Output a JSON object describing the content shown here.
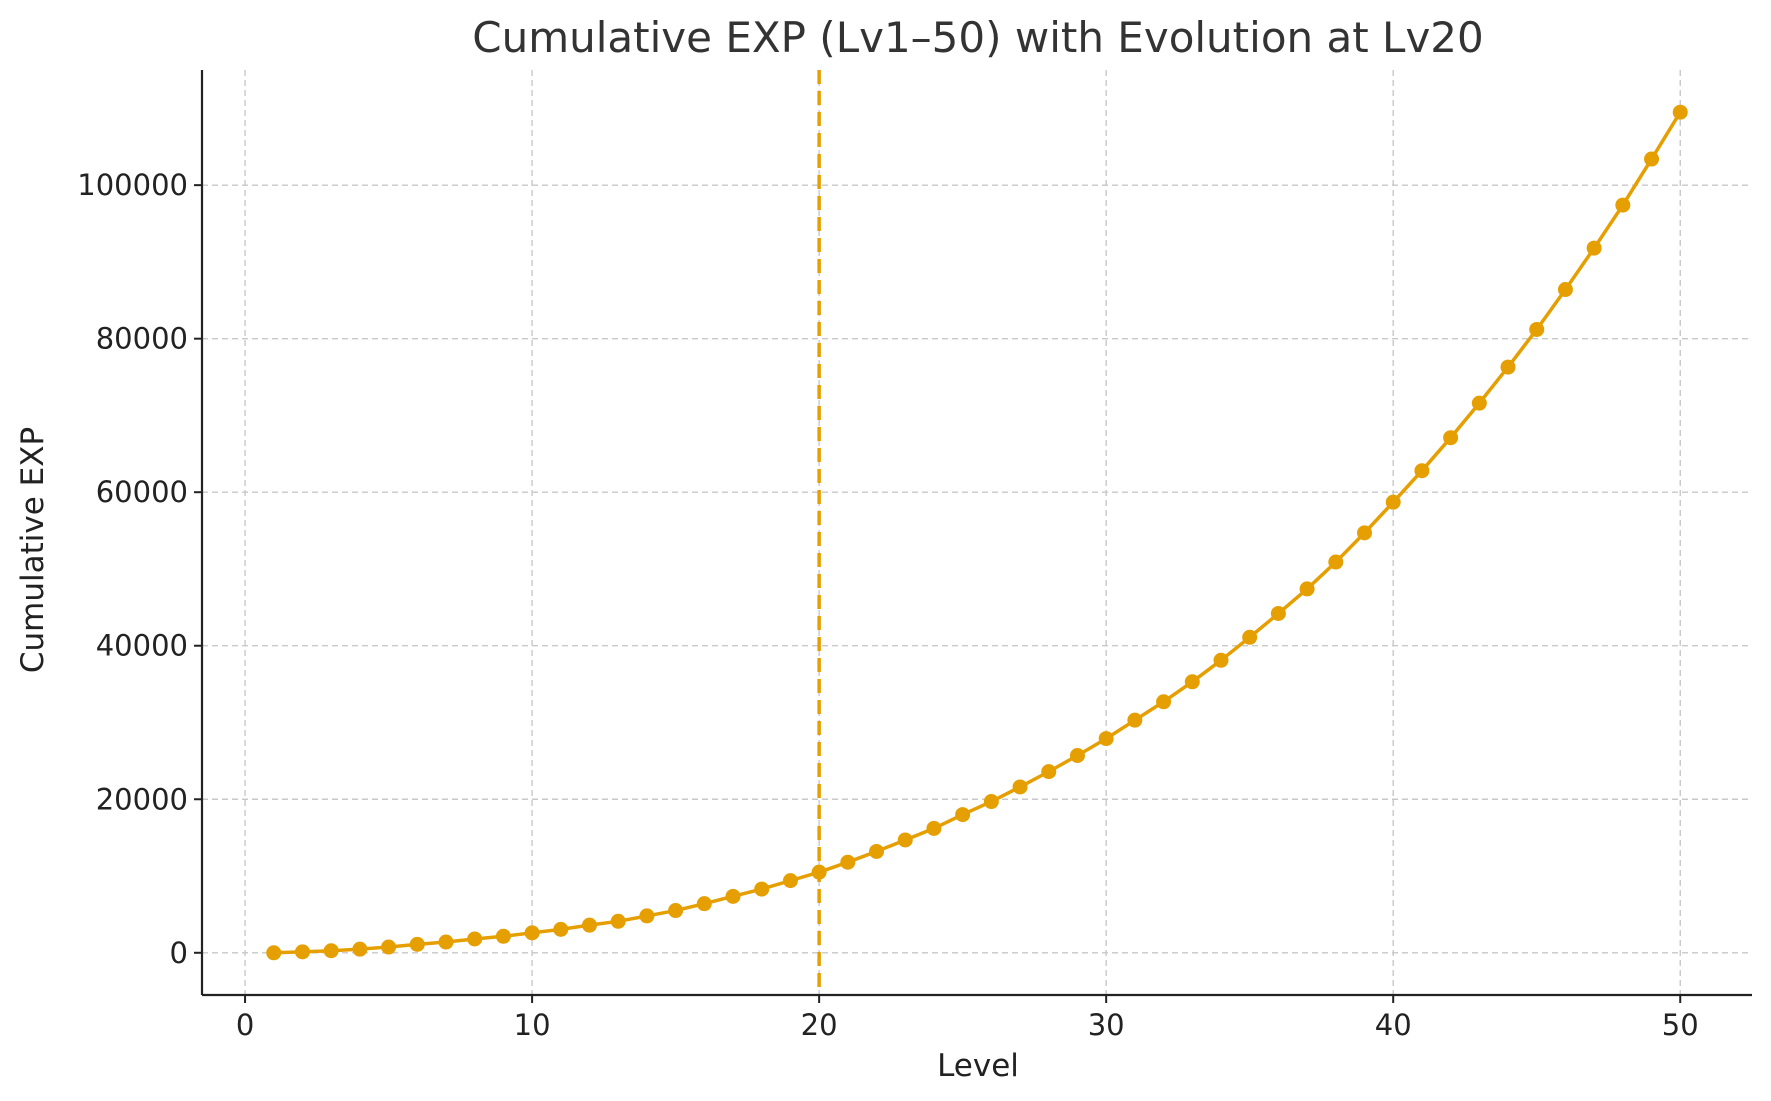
{
  "chart_data": {
    "type": "line",
    "title": "Cumulative EXP (Lv1–50) with Evolution at Lv20",
    "xlabel": "Level",
    "ylabel": "Cumulative EXP",
    "xlim": [
      -1.5,
      52.5
    ],
    "ylim": [
      -5500,
      115000
    ],
    "xticks": [
      0,
      10,
      20,
      30,
      40,
      50
    ],
    "yticks": [
      0,
      20000,
      40000,
      60000,
      80000,
      100000
    ],
    "grid": true,
    "legend": "none",
    "color": "#E69F00",
    "series": [
      {
        "marker": "circle",
        "x": [
          1,
          2,
          3,
          4,
          5,
          6,
          7,
          8,
          9,
          10,
          11,
          12,
          13,
          14,
          15,
          16,
          17,
          18,
          19,
          20,
          21,
          22,
          23,
          24,
          25,
          26,
          27,
          28,
          29,
          30,
          31,
          32,
          33,
          34,
          35,
          36,
          37,
          38,
          39,
          40,
          41,
          42,
          43,
          44,
          45,
          46,
          47,
          48,
          49,
          50
        ],
        "y": [
          0,
          120,
          270,
          470,
          750,
          1100,
          1400,
          1800,
          2150,
          2600,
          3050,
          3600,
          4100,
          4800,
          5500,
          6400,
          7350,
          8300,
          9400,
          10500,
          11800,
          13200,
          14700,
          16200,
          18000,
          19700,
          21600,
          23600,
          25700,
          27900,
          30300,
          32700,
          35300,
          38100,
          41100,
          44200,
          47400,
          50900,
          54700,
          58700,
          62800,
          67100,
          71600,
          76300,
          81200,
          86400,
          91800,
          97400,
          103400,
          109500
        ]
      }
    ],
    "annotations": [
      {
        "type": "vline",
        "x": 20,
        "style": "dashed"
      }
    ]
  }
}
